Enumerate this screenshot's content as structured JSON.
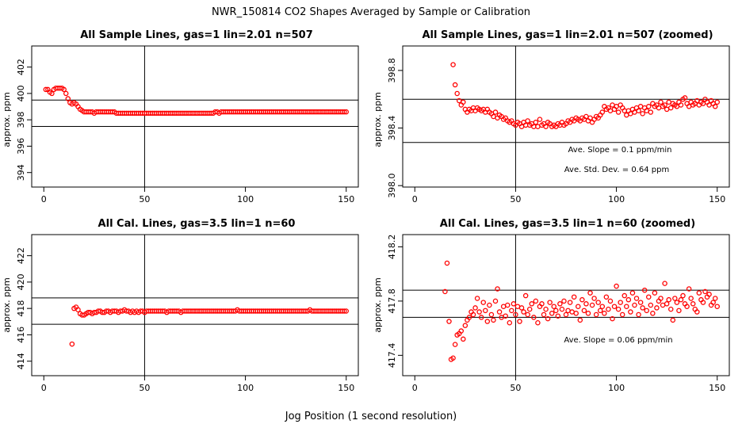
{
  "page_title": "NWR_150814  CO2 Shapes Averaged by Sample or Calibration",
  "x_axis_caption": "Jog Position (1 second resolution)",
  "chart_data": [
    {
      "id": "p1",
      "type": "scatter",
      "title": "All Sample Lines, gas=1 lin=2.01 n=507",
      "ylabel": "approx. ppm",
      "xlim": [
        -6,
        156
      ],
      "ylim": [
        392.9,
        403.6
      ],
      "xticks": [
        0,
        50,
        100,
        150
      ],
      "yticks": [
        394,
        396,
        398,
        400,
        402
      ],
      "ytick_labels": [
        "394",
        "396",
        "398",
        "400",
        "402"
      ],
      "vline": 50,
      "hlines": [
        399.5,
        397.5
      ],
      "annotations": [],
      "x": [
        1,
        2,
        3,
        4,
        5,
        6,
        7,
        8,
        9,
        10,
        11,
        12,
        13,
        14,
        15,
        16,
        17,
        18,
        19,
        20,
        21,
        22,
        23,
        24,
        25,
        26,
        27,
        28,
        29,
        30,
        31,
        32,
        33,
        34,
        35,
        36,
        37,
        38,
        39,
        40,
        41,
        42,
        43,
        44,
        45,
        46,
        47,
        48,
        49,
        50,
        51,
        52,
        53,
        54,
        55,
        56,
        57,
        58,
        59,
        60,
        61,
        62,
        63,
        64,
        65,
        66,
        67,
        68,
        69,
        70,
        71,
        72,
        73,
        74,
        75,
        76,
        77,
        78,
        79,
        80,
        81,
        82,
        83,
        84,
        85,
        86,
        87,
        88,
        89,
        90,
        91,
        92,
        93,
        94,
        95,
        96,
        97,
        98,
        99,
        100,
        101,
        102,
        103,
        104,
        105,
        106,
        107,
        108,
        109,
        110,
        111,
        112,
        113,
        114,
        115,
        116,
        117,
        118,
        119,
        120,
        121,
        122,
        123,
        124,
        125,
        126,
        127,
        128,
        129,
        130,
        131,
        132,
        133,
        134,
        135,
        136,
        137,
        138,
        139,
        140,
        141,
        142,
        143,
        144,
        145,
        146,
        147,
        148,
        149,
        150
      ],
      "y": [
        400.3,
        400.3,
        400.1,
        400.0,
        400.3,
        400.4,
        400.4,
        400.4,
        400.4,
        400.3,
        400.0,
        399.6,
        399.3,
        399.2,
        399.3,
        399.2,
        399.0,
        398.8,
        398.7,
        398.6,
        398.6,
        398.6,
        398.6,
        398.6,
        398.5,
        398.6,
        398.6,
        398.6,
        398.6,
        398.6,
        398.6,
        398.6,
        398.6,
        398.6,
        398.6,
        398.5,
        398.5,
        398.5,
        398.5,
        398.5,
        398.5,
        398.5,
        398.5,
        398.5,
        398.5,
        398.5,
        398.5,
        398.5,
        398.5,
        398.5,
        398.5,
        398.5,
        398.5,
        398.5,
        398.5,
        398.5,
        398.5,
        398.5,
        398.5,
        398.5,
        398.5,
        398.5,
        398.5,
        398.5,
        398.5,
        398.5,
        398.5,
        398.5,
        398.5,
        398.5,
        398.5,
        398.5,
        398.5,
        398.5,
        398.5,
        398.5,
        398.5,
        398.5,
        398.5,
        398.5,
        398.5,
        398.5,
        398.5,
        398.5,
        398.6,
        398.6,
        398.5,
        398.6,
        398.6,
        398.6,
        398.6,
        398.6,
        398.6,
        398.6,
        398.6,
        398.6,
        398.6,
        398.6,
        398.6,
        398.6,
        398.6,
        398.6,
        398.6,
        398.6,
        398.6,
        398.6,
        398.6,
        398.6,
        398.6,
        398.6,
        398.6,
        398.6,
        398.6,
        398.6,
        398.6,
        398.6,
        398.6,
        398.6,
        398.6,
        398.6,
        398.6,
        398.6,
        398.6,
        398.6,
        398.6,
        398.6,
        398.6,
        398.6,
        398.6,
        398.6,
        398.6,
        398.6,
        398.6,
        398.6,
        398.6,
        398.6,
        398.6,
        398.6,
        398.6,
        398.6,
        398.6,
        398.6,
        398.6,
        398.6,
        398.6,
        398.6,
        398.6,
        398.6,
        398.6,
        398.6
      ]
    },
    {
      "id": "p2",
      "type": "scatter",
      "title": "All Sample Lines, gas=1 lin=2.01 n=507 (zoomed)",
      "ylabel": "approx. ppm",
      "xlim": [
        -6,
        156
      ],
      "ylim": [
        397.99,
        398.97
      ],
      "xticks": [
        0,
        50,
        100,
        150
      ],
      "yticks": [
        398.0,
        398.4,
        398.8
      ],
      "ytick_labels": [
        "398.0",
        "398.4",
        "398.8"
      ],
      "vline": 50,
      "hlines": [
        398.6,
        398.3
      ],
      "annotations": [
        "Ave. Slope =  0.1  ppm/min",
        "Ave. Std. Dev. =  0.64  ppm"
      ],
      "x": [
        19,
        20,
        21,
        22,
        23,
        24,
        25,
        26,
        27,
        28,
        29,
        30,
        31,
        32,
        33,
        34,
        35,
        36,
        37,
        38,
        39,
        40,
        41,
        42,
        43,
        44,
        45,
        46,
        47,
        48,
        49,
        50,
        51,
        52,
        53,
        54,
        55,
        56,
        57,
        58,
        59,
        60,
        61,
        62,
        63,
        64,
        65,
        66,
        67,
        68,
        69,
        70,
        71,
        72,
        73,
        74,
        75,
        76,
        77,
        78,
        79,
        80,
        81,
        82,
        83,
        84,
        85,
        86,
        87,
        88,
        89,
        90,
        91,
        92,
        93,
        94,
        95,
        96,
        97,
        98,
        99,
        100,
        101,
        102,
        103,
        104,
        105,
        106,
        107,
        108,
        109,
        110,
        111,
        112,
        113,
        114,
        115,
        116,
        117,
        118,
        119,
        120,
        121,
        122,
        123,
        124,
        125,
        126,
        127,
        128,
        129,
        130,
        131,
        132,
        133,
        134,
        135,
        136,
        137,
        138,
        139,
        140,
        141,
        142,
        143,
        144,
        145,
        146,
        147,
        148,
        149,
        150
      ],
      "y": [
        398.84,
        398.7,
        398.64,
        398.59,
        398.56,
        398.58,
        398.53,
        398.51,
        398.53,
        398.52,
        398.54,
        398.52,
        398.54,
        398.53,
        398.52,
        398.53,
        398.51,
        398.53,
        398.51,
        398.5,
        398.48,
        398.51,
        398.47,
        398.49,
        398.48,
        398.46,
        398.47,
        398.45,
        398.44,
        398.45,
        398.43,
        398.42,
        398.44,
        398.43,
        398.41,
        398.44,
        398.42,
        398.45,
        398.42,
        398.43,
        398.41,
        398.44,
        398.41,
        398.46,
        398.42,
        398.43,
        398.41,
        398.44,
        398.43,
        398.41,
        398.42,
        398.41,
        398.43,
        398.42,
        398.44,
        398.42,
        398.43,
        398.45,
        398.44,
        398.46,
        398.45,
        398.47,
        398.46,
        398.45,
        398.47,
        398.46,
        398.48,
        398.45,
        398.47,
        398.44,
        398.46,
        398.48,
        398.47,
        398.49,
        398.51,
        398.55,
        398.53,
        398.54,
        398.52,
        398.56,
        398.53,
        398.55,
        398.51,
        398.56,
        398.54,
        398.52,
        398.49,
        398.52,
        398.5,
        398.53,
        398.51,
        398.54,
        398.52,
        398.55,
        398.5,
        398.54,
        398.52,
        398.55,
        398.51,
        398.57,
        398.55,
        398.56,
        398.54,
        398.58,
        398.55,
        398.56,
        398.53,
        398.58,
        398.54,
        398.57,
        398.56,
        398.55,
        398.58,
        398.56,
        398.6,
        398.61,
        398.57,
        398.55,
        398.58,
        398.56,
        398.57,
        398.59,
        398.56,
        398.58,
        398.57,
        398.6,
        398.58,
        398.56,
        398.59,
        398.57,
        398.55,
        398.58
      ]
    },
    {
      "id": "p3",
      "type": "scatter",
      "title": "All Cal. Lines, gas=3.5 lin=1 n=60",
      "ylabel": "approx. ppm",
      "xlim": [
        -6,
        156
      ],
      "ylim": [
        412.9,
        423.6
      ],
      "xticks": [
        0,
        50,
        100,
        150
      ],
      "yticks": [
        414,
        416,
        418,
        420,
        422
      ],
      "ytick_labels": [
        "414",
        "416",
        "418",
        "420",
        "422"
      ],
      "vline": 50,
      "hlines": [
        418.8,
        416.8
      ],
      "annotations": [],
      "x": [
        14,
        15,
        16,
        17,
        18,
        19,
        20,
        21,
        22,
        23,
        24,
        25,
        26,
        27,
        28,
        29,
        30,
        31,
        32,
        33,
        34,
        35,
        36,
        37,
        38,
        39,
        40,
        41,
        42,
        43,
        44,
        45,
        46,
        47,
        48,
        49,
        50,
        51,
        52,
        53,
        54,
        55,
        56,
        57,
        58,
        59,
        60,
        61,
        62,
        63,
        64,
        65,
        66,
        67,
        68,
        69,
        70,
        71,
        72,
        73,
        74,
        75,
        76,
        77,
        78,
        79,
        80,
        81,
        82,
        83,
        84,
        85,
        86,
        87,
        88,
        89,
        90,
        91,
        92,
        93,
        94,
        95,
        96,
        97,
        98,
        99,
        100,
        101,
        102,
        103,
        104,
        105,
        106,
        107,
        108,
        109,
        110,
        111,
        112,
        113,
        114,
        115,
        116,
        117,
        118,
        119,
        120,
        121,
        122,
        123,
        124,
        125,
        126,
        127,
        128,
        129,
        130,
        131,
        132,
        133,
        134,
        135,
        136,
        137,
        138,
        139,
        140,
        141,
        142,
        143,
        144,
        145,
        146,
        147,
        148,
        149,
        150
      ],
      "y": [
        415.3,
        418.0,
        418.1,
        417.9,
        417.6,
        417.5,
        417.5,
        417.6,
        417.7,
        417.7,
        417.6,
        417.7,
        417.7,
        417.8,
        417.8,
        417.7,
        417.7,
        417.8,
        417.8,
        417.7,
        417.8,
        417.8,
        417.8,
        417.7,
        417.8,
        417.8,
        417.9,
        417.8,
        417.8,
        417.7,
        417.8,
        417.7,
        417.8,
        417.7,
        417.8,
        417.8,
        417.7,
        417.8,
        417.8,
        417.8,
        417.8,
        417.8,
        417.8,
        417.8,
        417.8,
        417.8,
        417.8,
        417.7,
        417.8,
        417.8,
        417.8,
        417.8,
        417.8,
        417.8,
        417.7,
        417.8,
        417.8,
        417.8,
        417.8,
        417.8,
        417.8,
        417.8,
        417.8,
        417.8,
        417.8,
        417.8,
        417.8,
        417.8,
        417.8,
        417.8,
        417.8,
        417.8,
        417.8,
        417.8,
        417.8,
        417.8,
        417.8,
        417.8,
        417.8,
        417.8,
        417.8,
        417.8,
        417.9,
        417.8,
        417.8,
        417.8,
        417.8,
        417.8,
        417.8,
        417.8,
        417.8,
        417.8,
        417.8,
        417.8,
        417.8,
        417.8,
        417.8,
        417.8,
        417.8,
        417.8,
        417.8,
        417.8,
        417.8,
        417.8,
        417.8,
        417.8,
        417.8,
        417.8,
        417.8,
        417.8,
        417.8,
        417.8,
        417.8,
        417.8,
        417.8,
        417.8,
        417.8,
        417.8,
        417.9,
        417.8,
        417.8,
        417.8,
        417.8,
        417.8,
        417.8,
        417.8,
        417.8,
        417.8,
        417.8,
        417.8,
        417.8,
        417.8,
        417.8,
        417.8,
        417.8,
        417.8,
        417.8
      ]
    },
    {
      "id": "p4",
      "type": "scatter",
      "title": "All Cal. Lines, gas=3.5 lin=1 n=60 (zoomed)",
      "ylabel": "approx. ppm",
      "xlim": [
        -6,
        156
      ],
      "ylim": [
        417.25,
        418.29
      ],
      "xticks": [
        0,
        50,
        100,
        150
      ],
      "yticks": [
        417.4,
        417.8,
        418.2
      ],
      "ytick_labels": [
        "417.4",
        "417.8",
        "418.2"
      ],
      "vline": 50,
      "hlines": [
        417.88,
        417.68
      ],
      "annotations": [
        "Ave. Slope =  0.06  ppm/min"
      ],
      "x": [
        15,
        16,
        17,
        18,
        19,
        20,
        21,
        22,
        23,
        24,
        25,
        26,
        27,
        28,
        29,
        30,
        31,
        32,
        33,
        34,
        35,
        36,
        37,
        38,
        39,
        40,
        41,
        42,
        43,
        44,
        45,
        46,
        47,
        48,
        49,
        50,
        51,
        52,
        53,
        54,
        55,
        56,
        57,
        58,
        59,
        60,
        61,
        62,
        63,
        64,
        65,
        66,
        67,
        68,
        69,
        70,
        71,
        72,
        73,
        74,
        75,
        76,
        77,
        78,
        79,
        80,
        81,
        82,
        83,
        84,
        85,
        86,
        87,
        88,
        89,
        90,
        91,
        92,
        93,
        94,
        95,
        96,
        97,
        98,
        99,
        100,
        101,
        102,
        103,
        104,
        105,
        106,
        107,
        108,
        109,
        110,
        111,
        112,
        113,
        114,
        115,
        116,
        117,
        118,
        119,
        120,
        121,
        122,
        123,
        124,
        125,
        126,
        127,
        128,
        129,
        130,
        131,
        132,
        133,
        134,
        135,
        136,
        137,
        138,
        139,
        140,
        141,
        142,
        143,
        144,
        145,
        146,
        147,
        148,
        149,
        150
      ],
      "y": [
        417.87,
        418.08,
        417.65,
        417.37,
        417.38,
        417.48,
        417.55,
        417.56,
        417.58,
        417.52,
        417.62,
        417.66,
        417.68,
        417.72,
        417.7,
        417.75,
        417.82,
        417.72,
        417.68,
        417.79,
        417.73,
        417.65,
        417.77,
        417.7,
        417.66,
        417.8,
        417.89,
        417.72,
        417.68,
        417.76,
        417.69,
        417.77,
        417.64,
        417.73,
        417.78,
        417.7,
        417.76,
        417.65,
        417.75,
        417.72,
        417.84,
        417.7,
        417.74,
        417.78,
        417.68,
        417.8,
        417.64,
        417.76,
        417.78,
        417.7,
        417.74,
        417.67,
        417.79,
        417.71,
        417.76,
        417.73,
        417.69,
        417.78,
        417.74,
        417.8,
        417.7,
        417.73,
        417.79,
        417.72,
        417.83,
        417.71,
        417.76,
        417.66,
        417.81,
        417.73,
        417.78,
        417.71,
        417.86,
        417.77,
        417.82,
        417.7,
        417.79,
        417.73,
        417.76,
        417.71,
        417.83,
        417.74,
        417.8,
        417.67,
        417.76,
        417.91,
        417.74,
        417.79,
        417.7,
        417.84,
        417.76,
        417.81,
        417.72,
        417.86,
        417.77,
        417.82,
        417.7,
        417.79,
        417.75,
        417.88,
        417.73,
        417.83,
        417.77,
        417.71,
        417.86,
        417.75,
        417.8,
        417.82,
        417.77,
        417.93,
        417.78,
        417.81,
        417.74,
        417.66,
        417.82,
        417.79,
        417.73,
        417.81,
        417.84,
        417.78,
        417.76,
        417.89,
        417.82,
        417.78,
        417.74,
        417.72,
        417.86,
        417.81,
        417.79,
        417.87,
        417.83,
        417.85,
        417.77,
        417.79,
        417.82,
        417.76
      ]
    }
  ]
}
